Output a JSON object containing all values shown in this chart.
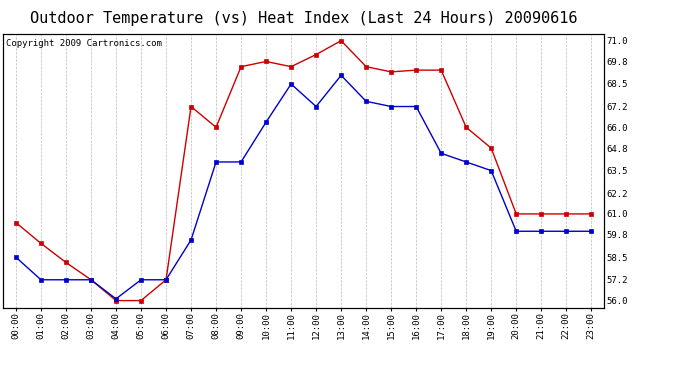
{
  "title": "Outdoor Temperature (vs) Heat Index (Last 24 Hours) 20090616",
  "copyright": "Copyright 2009 Cartronics.com",
  "x_labels": [
    "00:00",
    "01:00",
    "02:00",
    "03:00",
    "04:00",
    "05:00",
    "06:00",
    "07:00",
    "08:00",
    "09:00",
    "10:00",
    "11:00",
    "12:00",
    "13:00",
    "14:00",
    "15:00",
    "16:00",
    "17:00",
    "18:00",
    "19:00",
    "20:00",
    "21:00",
    "22:00",
    "23:00"
  ],
  "temp_red": [
    60.5,
    59.3,
    58.2,
    57.2,
    56.0,
    56.0,
    57.2,
    67.2,
    66.0,
    69.5,
    69.8,
    69.5,
    70.2,
    71.0,
    69.5,
    69.2,
    69.3,
    69.3,
    66.0,
    64.8,
    61.0,
    61.0,
    61.0,
    61.0
  ],
  "temp_blue": [
    58.5,
    57.2,
    57.2,
    57.2,
    56.1,
    57.2,
    57.2,
    59.5,
    64.0,
    64.0,
    66.3,
    68.5,
    67.2,
    69.0,
    67.5,
    67.2,
    67.2,
    64.5,
    64.0,
    63.5,
    60.0,
    60.0,
    60.0,
    60.0
  ],
  "ylim": [
    55.6,
    71.4
  ],
  "y_ticks_right": [
    56.0,
    57.2,
    58.5,
    59.8,
    61.0,
    62.2,
    63.5,
    64.8,
    66.0,
    67.2,
    68.5,
    69.8,
    71.0
  ],
  "red_color": "#cc0000",
  "blue_color": "#0000cc",
  "grid_color": "#aaaaaa",
  "background_color": "#ffffff",
  "title_fontsize": 11,
  "copyright_fontsize": 6.5
}
